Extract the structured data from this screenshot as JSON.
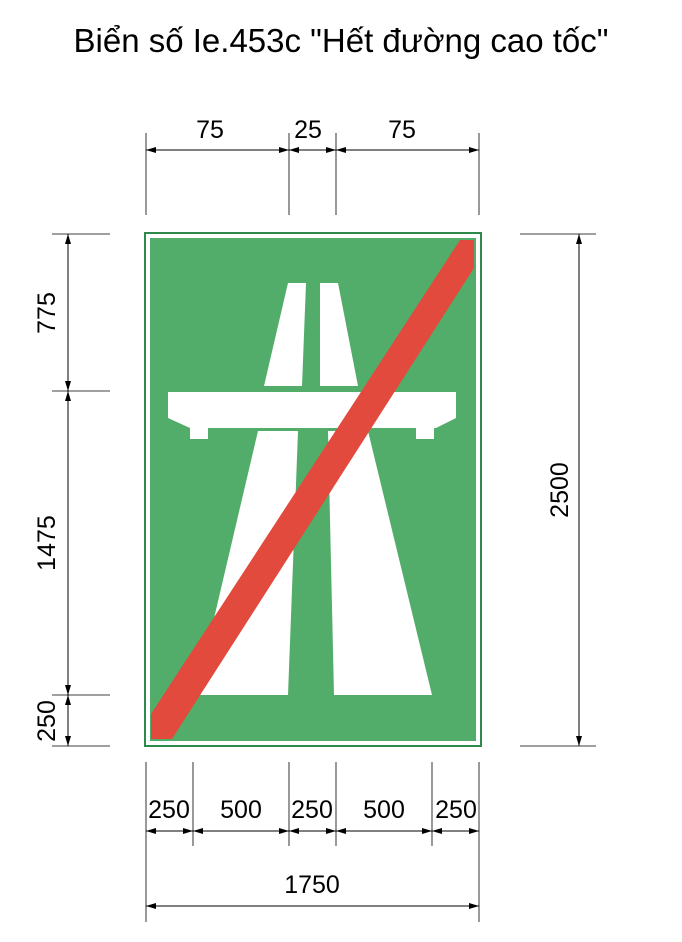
{
  "title": "Biển số Ie.453c \"Hết đường cao tốc\"",
  "colors": {
    "sign_green": "#52ad6a",
    "sign_border": "#2e8a4b",
    "road_white": "#ffffff",
    "cancel_stripe_red": "#e14a3d",
    "dimension_lines": "#000000"
  },
  "dimensions": {
    "top": [
      "75",
      "25",
      "75"
    ],
    "bottom": [
      "250",
      "500",
      "250",
      "500",
      "250"
    ],
    "total_width": "1750",
    "left": [
      "775",
      "1475",
      "250"
    ],
    "total_height": "2500"
  }
}
